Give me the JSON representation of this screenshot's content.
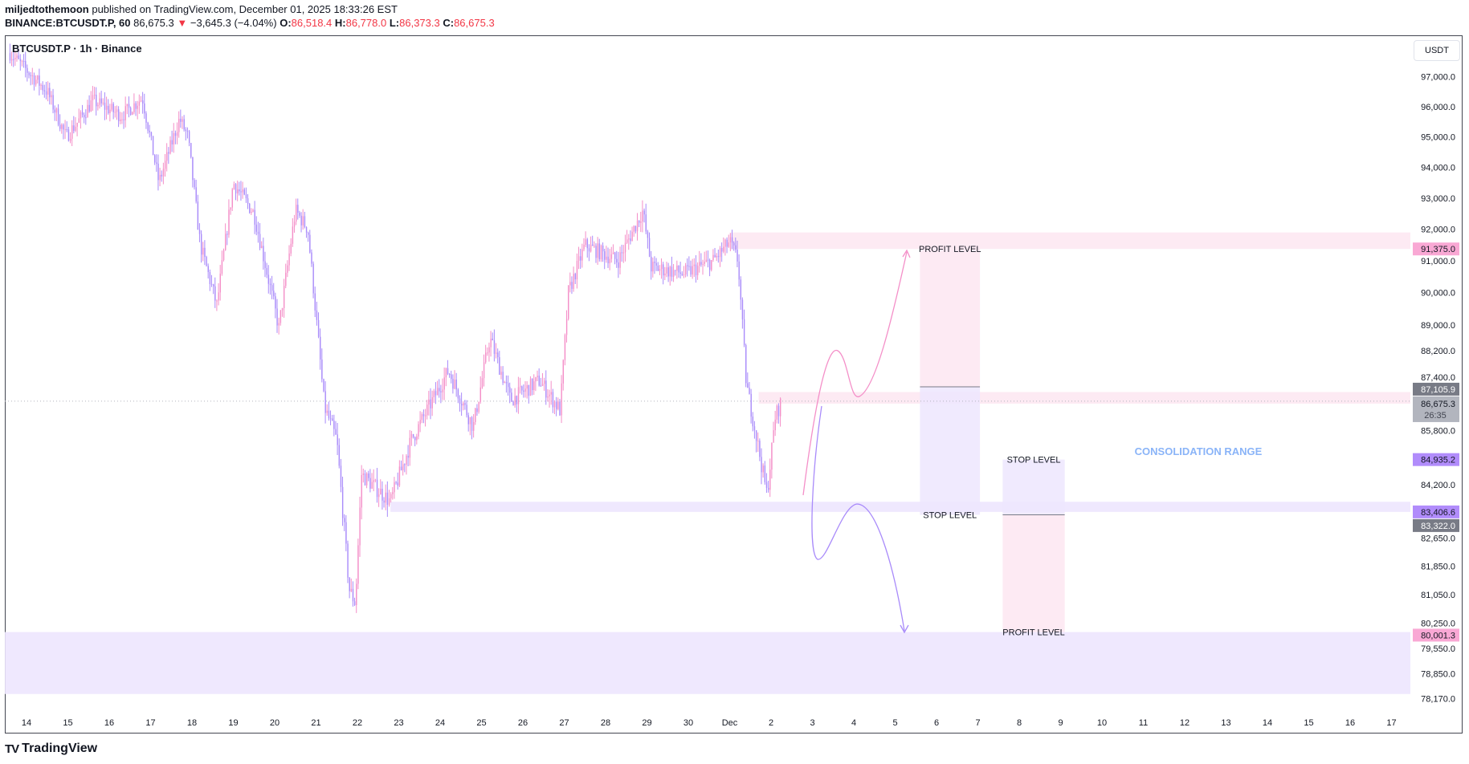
{
  "header": {
    "author": "miljedtothemoon",
    "published": "published on TradingView.com, December 01, 2025 18:33:26 EST",
    "symbol_interval": "BINANCE:BTCUSDT.P, 60",
    "last": "86,675.3",
    "change": "−3,645.3 (−4.04%)",
    "o_label": "O:",
    "o": "86,518.4",
    "h_label": "H:",
    "h": "86,778.0",
    "l_label": "L:",
    "l": "86,373.3",
    "c_label": "C:",
    "c": "86,675.3"
  },
  "legend": "BTCUSDT.P · 1h · Binance",
  "currency": "USDT",
  "brand": "TradingView",
  "colors": {
    "up": "#f48fc8",
    "down": "#a98bfa",
    "pink_zone": "#fde8f2",
    "purple_zone": "#ede6fe",
    "consolidation": "#8ab4f8"
  },
  "chart_data": {
    "type": "candlestick",
    "title": "BTCUSDT.P · 1h · Binance",
    "scale": "log",
    "ylim": [
      77900,
      98200
    ],
    "y_ticks": [
      "97,000.0",
      "96,000.0",
      "95,000.0",
      "94,000.0",
      "93,000.0",
      "92,000.0",
      "91,000.0",
      "90,000.0",
      "89,000.0",
      "88,200.0",
      "87,400.0",
      "85,800.0",
      "84,200.0",
      "82,650.0",
      "81,850.0",
      "81,050.0",
      "80,250.0",
      "79,550.0",
      "78,850.0",
      "78,170.0"
    ],
    "y_tick_values": [
      97000,
      96000,
      95000,
      94000,
      93000,
      92000,
      91000,
      90000,
      89000,
      88200,
      87400,
      85800,
      84200,
      82650,
      81850,
      81050,
      80250,
      79550,
      78850,
      78170
    ],
    "x_ticks": [
      "14",
      "15",
      "16",
      "17",
      "18",
      "19",
      "20",
      "21",
      "22",
      "23",
      "24",
      "25",
      "26",
      "27",
      "28",
      "29",
      "30",
      "Dec",
      "2",
      "3",
      "4",
      "5",
      "6",
      "7",
      "8",
      "9",
      "10",
      "11",
      "12",
      "13",
      "14",
      "15",
      "16",
      "17"
    ],
    "price_path_day_price": [
      [
        -0.4,
        97800
      ],
      [
        0.5,
        96500
      ],
      [
        0.95,
        95000
      ],
      [
        1.3,
        95600
      ],
      [
        1.6,
        96200
      ],
      [
        2.3,
        95700
      ],
      [
        2.8,
        96300
      ],
      [
        3.2,
        93500
      ],
      [
        3.7,
        95600
      ],
      [
        3.9,
        95000
      ],
      [
        4.2,
        91500
      ],
      [
        4.6,
        89600
      ],
      [
        5.0,
        93500
      ],
      [
        5.5,
        92500
      ],
      [
        6.1,
        88900
      ],
      [
        6.5,
        92600
      ],
      [
        6.8,
        92000
      ],
      [
        7.2,
        86500
      ],
      [
        7.5,
        85500
      ],
      [
        7.8,
        81200
      ],
      [
        7.95,
        80800
      ],
      [
        8.1,
        84500
      ],
      [
        8.8,
        83700
      ],
      [
        9.3,
        85500
      ],
      [
        10.2,
        87600
      ],
      [
        10.8,
        85900
      ],
      [
        11.2,
        88600
      ],
      [
        11.7,
        86700
      ],
      [
        12.4,
        87300
      ],
      [
        12.9,
        86400
      ],
      [
        13.1,
        90000
      ],
      [
        13.5,
        91500
      ],
      [
        14.3,
        91000
      ],
      [
        14.9,
        92600
      ],
      [
        15.1,
        90800
      ],
      [
        15.9,
        90600
      ],
      [
        16.6,
        91000
      ],
      [
        17.0,
        91600
      ],
      [
        17.2,
        91000
      ],
      [
        17.4,
        87200
      ],
      [
        17.6,
        85900
      ],
      [
        17.9,
        83900
      ],
      [
        18.1,
        86200
      ],
      [
        18.25,
        86675
      ]
    ],
    "last_price": 86675.3,
    "countdown": "26:35",
    "price_labels": [
      {
        "text": "91,375.0",
        "value": 91375,
        "color": "#f9a8d4"
      },
      {
        "text": "87,105.9",
        "value": 87105.9,
        "color": "#787b86"
      },
      {
        "text": "84,935.2",
        "value": 84935.2,
        "color": "#b18cfb"
      },
      {
        "text": "83,406.6",
        "value": 83406.6,
        "color": "#b18cfb"
      },
      {
        "text": "83,322.0",
        "value": 83322,
        "color": "#787b86"
      },
      {
        "text": "80,001.3",
        "value": 80001.3,
        "color": "#f9a8d4"
      }
    ],
    "zones": [
      {
        "name": "resistance-zone",
        "from_day": 17.0,
        "top": 91900,
        "bottom": 91375,
        "color": "pink"
      },
      {
        "name": "current-price-zone",
        "from_day": 17.7,
        "top": 86950,
        "bottom": 86600,
        "color": "pink"
      },
      {
        "name": "support-zone",
        "from_day": 8.8,
        "top": 83700,
        "bottom": 83406.6,
        "color": "purple"
      },
      {
        "name": "lower-demand-zone",
        "from_day": -0.6,
        "top": 80001.3,
        "bottom": 78300,
        "color": "purple"
      }
    ],
    "positions": [
      {
        "side": "long",
        "from_day": 21.6,
        "to_day": 23.05,
        "entry": 87105.9,
        "target": 91375,
        "stop": 83322,
        "target_label": "PROFIT LEVEL",
        "stop_label": "STOP LEVEL"
      },
      {
        "side": "short",
        "from_day": 23.6,
        "to_day": 25.1,
        "entry": 83322,
        "stop": 84935.2,
        "target": 80001.3,
        "target_label": "PROFIT LEVEL",
        "stop_label": "STOP LEVEL"
      }
    ],
    "annotation": "CONSOLIDATION RANGE"
  }
}
